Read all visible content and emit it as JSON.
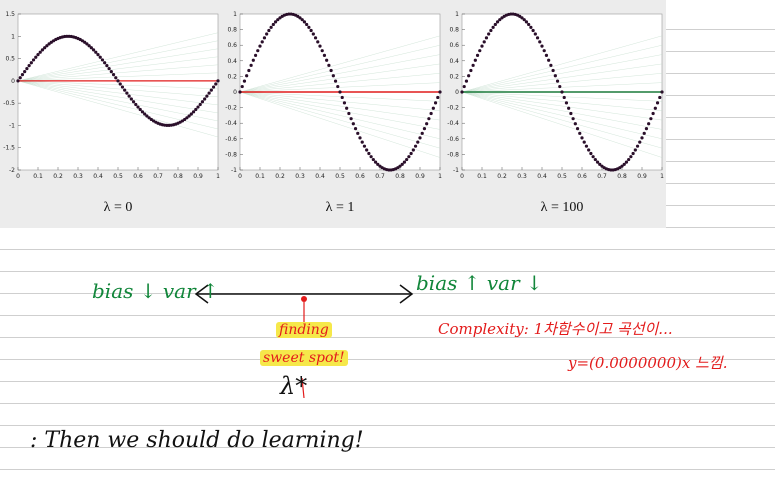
{
  "plots": [
    {
      "caption": "λ = 0",
      "y_ticks": [
        "1.5",
        "1",
        "0.5",
        "0",
        "-0.5",
        "-1",
        "-1.5",
        "-2"
      ],
      "x_ticks": [
        "0",
        "0.1",
        "0.2",
        "0.3",
        "0.4",
        "0.5",
        "0.6",
        "0.7",
        "0.8",
        "0.9",
        "1"
      ],
      "fit_color": "#e01b1b"
    },
    {
      "caption": "λ = 1",
      "y_ticks": [
        "1",
        "0.8",
        "0.6",
        "0.4",
        "0.2",
        "0",
        "-0.2",
        "-0.4",
        "-0.6",
        "-0.8",
        "-1"
      ],
      "x_ticks": [
        "0",
        "0.1",
        "0.2",
        "0.3",
        "0.4",
        "0.5",
        "0.6",
        "0.7",
        "0.8",
        "0.9",
        "1"
      ],
      "fit_color": "#e01b1b"
    },
    {
      "caption": "λ = 100",
      "y_ticks": [
        "1",
        "0.8",
        "0.6",
        "0.4",
        "0.2",
        "0",
        "-0.2",
        "-0.4",
        "-0.6",
        "-0.8",
        "-1"
      ],
      "x_ticks": [
        "0",
        "0.1",
        "0.2",
        "0.3",
        "0.4",
        "0.5",
        "0.6",
        "0.7",
        "0.8",
        "0.9",
        "1"
      ],
      "fit_color": "#1a7a3a"
    }
  ],
  "notes": {
    "left_tradeoff": "bias ↓ var ↑",
    "right_tradeoff": "bias ↑ var ↓",
    "finding": "finding",
    "sweet_spot": "sweet spot!",
    "lambda_star": "λ*",
    "complexity": "Complexity: 1차함수이고 곡선이...",
    "complexity_line2": "y=(0.0000000)x 느낌.",
    "conclusion": ": Then we should do learning!"
  },
  "colors": {
    "curve_dots": "#2a0f2a",
    "handwriting_green": "#11863a",
    "handwriting_red": "#e31b1b",
    "highlight": "#f6e84a"
  }
}
